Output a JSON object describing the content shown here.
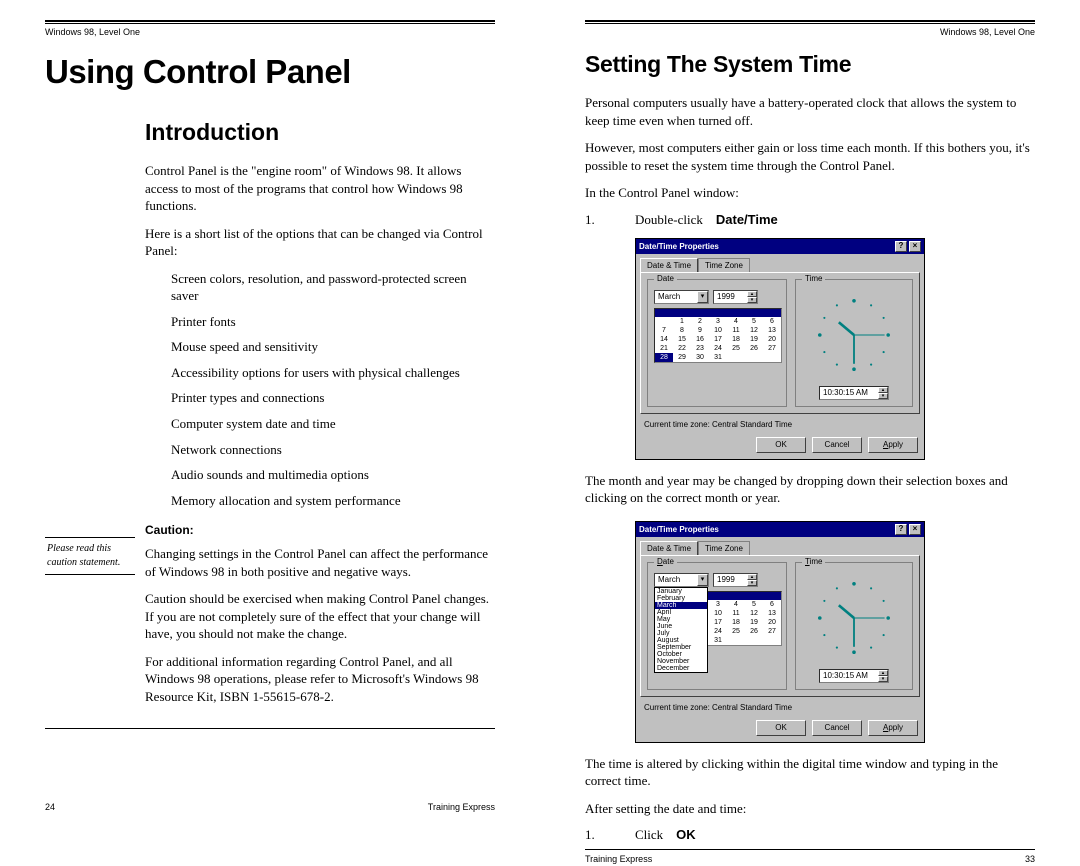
{
  "header": "Windows 98, Level One",
  "footer_publisher": "Training Express",
  "left_page_num": "24",
  "right_page_num": "33",
  "left": {
    "title": "Using Control Panel",
    "h2": "Introduction",
    "p1": "Control Panel is the \"engine room\" of Windows 98. It allows access to most of the programs that control how Windows 98 functions.",
    "p2": "Here is a short list of the options that can be changed via Control Panel:",
    "bullets": [
      "Screen colors, resolution, and password-protected screen saver",
      "Printer fonts",
      "Mouse speed and sensitivity",
      "Accessibility options for users with physical challenges",
      "Printer types and connections",
      "Computer system date and time",
      "Network connections",
      "Audio sounds and multimedia options",
      "Memory allocation and system performance"
    ],
    "caution_label": "Caution:",
    "side_note": "Please read this caution statement.",
    "c1": "Changing settings in the Control Panel can affect the performance of Windows 98 in both positive and negative ways.",
    "c2": "Caution should be exercised when making Control Panel changes. If you are not completely sure of the effect that your change will have, you should not make the change.",
    "c3": "For additional information regarding Control Panel, and all Windows 98 operations, please refer to Microsoft's Windows 98 Resource Kit, ISBN 1-55615-678-2."
  },
  "right": {
    "title": "Setting The System Time",
    "p1": "Personal computers usually have a battery-operated clock that allows the system to keep time even when turned off.",
    "p2": "However, most computers either gain or loss time each month. If this bothers you, it's possible to reset the system time through the Control Panel.",
    "p3": "In the Control Panel window:",
    "step1_pre": "Double-click",
    "step1_bold": "Date/Time",
    "p4": "The month and year may be changed by dropping down their selection boxes and clicking on the correct month or year.",
    "p5": "The time is altered by clicking within the digital time window and typing in the correct time.",
    "p6": "After setting the date and time:",
    "step2_pre": "Click",
    "step2_bold": "OK"
  },
  "dialog": {
    "title": "Date/Time Properties",
    "tab1": "Date & Time",
    "tab2": "Time Zone",
    "date_label": "Date",
    "time_label": "Time",
    "month": "March",
    "year": "1999",
    "days_row1": [
      "",
      "1",
      "2",
      "3",
      "4",
      "5",
      "6"
    ],
    "days_row2": [
      "7",
      "8",
      "9",
      "10",
      "11",
      "12",
      "13"
    ],
    "days_row3": [
      "14",
      "15",
      "16",
      "17",
      "18",
      "19",
      "20"
    ],
    "days_row4": [
      "21",
      "22",
      "23",
      "24",
      "25",
      "26",
      "27"
    ],
    "days_row5": [
      "28",
      "29",
      "30",
      "31",
      "",
      "",
      ""
    ],
    "selected_day_idx_row5": 0,
    "time_value": "10:30:15 AM",
    "tz": "Current time zone: Central Standard Time",
    "ok": "OK",
    "cancel": "Cancel",
    "apply": "Apply",
    "months_list": [
      "January",
      "February",
      "March",
      "April",
      "May",
      "June",
      "July",
      "August",
      "September",
      "October",
      "November",
      "December"
    ],
    "clock": {
      "tick_color": "#008080",
      "hand_color": "#008080",
      "hour_angle": 310,
      "min_angle": 180,
      "sec_angle": 90
    }
  },
  "colors": {
    "titlebar": "#000080",
    "dialog_bg": "#c0c0c0",
    "tick": "#008080"
  }
}
